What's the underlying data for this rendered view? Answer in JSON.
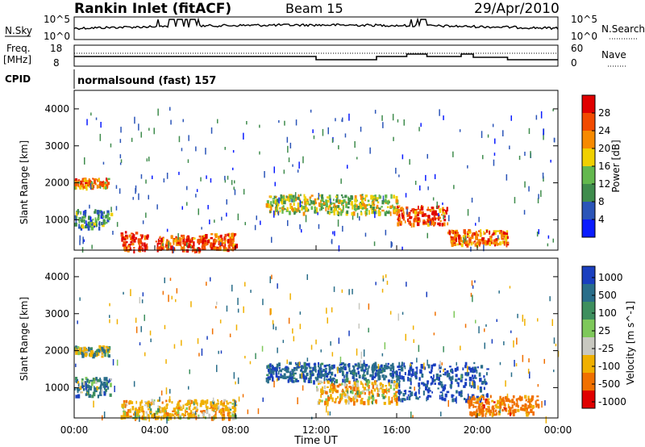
{
  "header": {
    "station": "Rankin Inlet (fitACF)",
    "beam": "Beam 15",
    "date": "29/Apr/2010"
  },
  "noise_panel": {
    "left_label": "N.Sky",
    "left_ticks": [
      "10^5",
      "10^0"
    ],
    "right_label": "N.Search",
    "right_ticks": [
      "10^5",
      "10^0"
    ],
    "line_style_note": "......"
  },
  "freq_panel": {
    "left_label_1": "Freq.",
    "left_label_2": "[MHz]",
    "left_ticks": [
      "18",
      "8"
    ],
    "right_label": "Nave",
    "right_ticks": [
      "60",
      "0"
    ],
    "line_style_note": "...."
  },
  "cpid_panel": {
    "label": "CPID",
    "program": "normalsound (fast) 157"
  },
  "axes": {
    "x_label": "Time UT",
    "x_ticks": [
      "00:00",
      "04:00",
      "08:00",
      "12:00",
      "16:00",
      "20:00",
      "00:00"
    ],
    "y_label": "Slant Range [km]",
    "y_ticks": [
      "1000",
      "2000",
      "3000",
      "4000"
    ]
  },
  "colorbars": {
    "power": {
      "title": "Power [dB]",
      "ticks": [
        "4",
        "8",
        "12",
        "16",
        "20",
        "24",
        "28"
      ],
      "colors": [
        "#0a1cff",
        "#2b55b8",
        "#3f8c4d",
        "#63b84e",
        "#f0d000",
        "#f78a00",
        "#f24a00",
        "#e00000"
      ]
    },
    "velocity": {
      "title": "Velocity [m s^-1]",
      "ticks": [
        "1000",
        "500",
        "100",
        "25",
        "-25",
        "-100",
        "-500",
        "-1000"
      ],
      "colors": [
        "#1a3fbf",
        "#2a6e8a",
        "#3e8f5e",
        "#7ec85a",
        "#c8c8c0",
        "#f0b000",
        "#f07000",
        "#e00000"
      ]
    }
  },
  "chart_data": {
    "type": "heatmap",
    "x_range_hours": [
      0,
      24
    ],
    "y_range_km": [
      180,
      4500
    ],
    "power_clusters_db": [
      {
        "t0": 0.0,
        "t1": 1.7,
        "r0": 1900,
        "r1": 2150,
        "level": 22
      },
      {
        "t0": 0.0,
        "t1": 1.8,
        "r0": 800,
        "r1": 1300,
        "level": 10
      },
      {
        "t0": 2.3,
        "t1": 3.6,
        "r0": 200,
        "r1": 700,
        "level": 28
      },
      {
        "t0": 4.0,
        "t1": 6.5,
        "r0": 200,
        "r1": 600,
        "level": 26
      },
      {
        "t0": 6.3,
        "t1": 8.0,
        "r0": 200,
        "r1": 650,
        "level": 25
      },
      {
        "t0": 9.5,
        "t1": 16.0,
        "r0": 1200,
        "r1": 1700,
        "level": 16
      },
      {
        "t0": 16.0,
        "t1": 18.5,
        "r0": 900,
        "r1": 1400,
        "level": 26
      },
      {
        "t0": 18.5,
        "t1": 21.5,
        "r0": 350,
        "r1": 750,
        "level": 24
      }
    ],
    "velocity_clusters_ms": [
      {
        "t0": 0.0,
        "t1": 1.7,
        "r0": 1900,
        "r1": 2150,
        "level": 0
      },
      {
        "t0": 0.0,
        "t1": 1.8,
        "r0": 800,
        "r1": 1300,
        "level": 200
      },
      {
        "t0": 2.3,
        "t1": 8.0,
        "r0": 200,
        "r1": 700,
        "level": -300
      },
      {
        "t0": 9.5,
        "t1": 16.0,
        "r0": 1200,
        "r1": 1700,
        "level": 400
      },
      {
        "t0": 12.0,
        "t1": 16.0,
        "r0": 600,
        "r1": 1200,
        "level": -300
      },
      {
        "t0": 16.0,
        "t1": 20.5,
        "r0": 700,
        "r1": 1700,
        "level": 600
      },
      {
        "t0": 19.5,
        "t1": 23.0,
        "r0": 300,
        "r1": 800,
        "level": -700
      }
    ]
  }
}
